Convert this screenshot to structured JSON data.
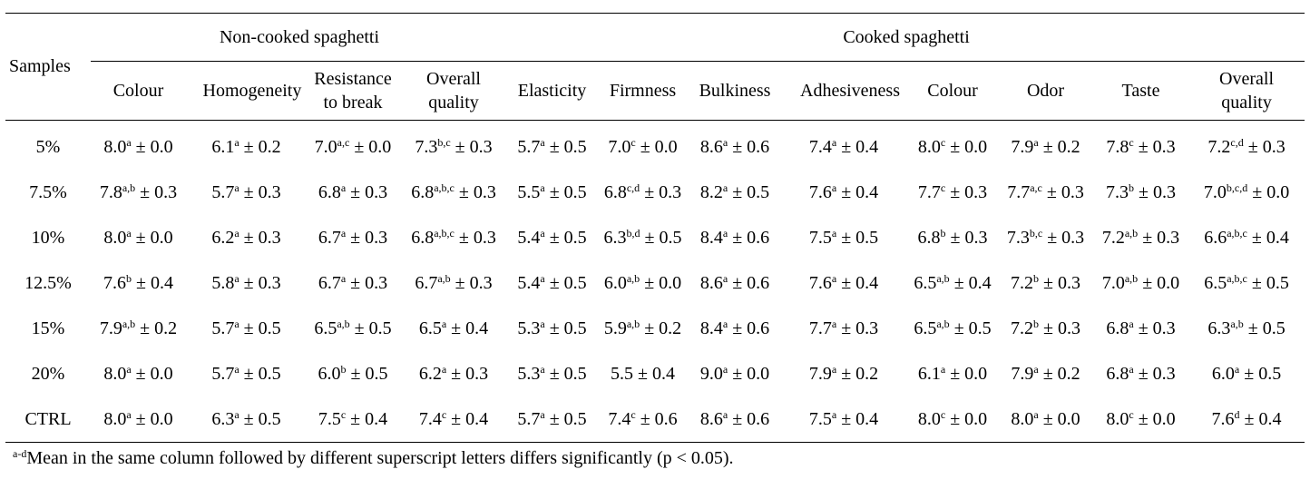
{
  "table": {
    "stub_header": "Samples",
    "groups": [
      "Non-cooked spaghetti",
      "Cooked spaghetti"
    ],
    "columns": [
      "Colour",
      "Homogeneity",
      "Resistance to break",
      "Overall quality",
      "Elasticity",
      "Firmness",
      "Bulkiness",
      "Adhesiveness",
      "Colour",
      "Odor",
      "Taste",
      "Overall quality"
    ],
    "rows": [
      {
        "sample": "5%",
        "cells": [
          [
            "8.0",
            "a",
            "± 0.0"
          ],
          [
            "6.1",
            "a",
            "± 0.2"
          ],
          [
            "7.0",
            "a,c",
            "± 0.0"
          ],
          [
            "7.3",
            "b,c",
            "± 0.3"
          ],
          [
            "5.7",
            "a",
            "± 0.5"
          ],
          [
            "7.0",
            "c",
            "± 0.0"
          ],
          [
            "8.6",
            "a",
            "± 0.6"
          ],
          [
            "7.4",
            "a",
            "± 0.4"
          ],
          [
            "8.0",
            "c",
            "± 0.0"
          ],
          [
            "7.9",
            "a",
            "± 0.2"
          ],
          [
            "7.8",
            "c",
            "± 0.3"
          ],
          [
            "7.2",
            "c,d",
            "± 0.3"
          ]
        ]
      },
      {
        "sample": "7.5%",
        "cells": [
          [
            "7.8",
            "a,b",
            "± 0.3"
          ],
          [
            "5.7",
            "a",
            "± 0.3"
          ],
          [
            "6.8",
            "a",
            "± 0.3"
          ],
          [
            "6.8",
            "a,b,c",
            "± 0.3"
          ],
          [
            "5.5",
            "a",
            "± 0.5"
          ],
          [
            "6.8",
            "c,d",
            "± 0.3"
          ],
          [
            "8.2",
            "a",
            "± 0.5"
          ],
          [
            "7.6",
            "a",
            "± 0.4"
          ],
          [
            "7.7",
            "c",
            "± 0.3"
          ],
          [
            "7.7",
            "a,c",
            "± 0.3"
          ],
          [
            "7.3",
            "b",
            "± 0.3"
          ],
          [
            "7.0",
            "b,c,d",
            "± 0.0"
          ]
        ]
      },
      {
        "sample": "10%",
        "cells": [
          [
            "8.0",
            "a",
            "± 0.0"
          ],
          [
            "6.2",
            "a",
            "± 0.3"
          ],
          [
            "6.7",
            "a",
            "± 0.3"
          ],
          [
            "6.8",
            "a,b,c",
            "± 0.3"
          ],
          [
            "5.4",
            "a",
            "± 0.5"
          ],
          [
            "6.3",
            "b,d",
            "± 0.5"
          ],
          [
            "8.4",
            "a",
            "± 0.6"
          ],
          [
            "7.5",
            "a",
            "± 0.5"
          ],
          [
            "6.8",
            "b",
            "± 0.3"
          ],
          [
            "7.3",
            "b,c",
            "± 0.3"
          ],
          [
            "7.2",
            "a,b",
            "± 0.3"
          ],
          [
            "6.6",
            "a,b,c",
            "± 0.4"
          ]
        ]
      },
      {
        "sample": "12.5%",
        "cells": [
          [
            "7.6",
            "b",
            "± 0.4"
          ],
          [
            "5.8",
            "a",
            "± 0.3"
          ],
          [
            "6.7",
            "a",
            "± 0.3"
          ],
          [
            "6.7",
            "a,b",
            "± 0.3"
          ],
          [
            "5.4",
            "a",
            "± 0.5"
          ],
          [
            "6.0",
            "a,b",
            "± 0.0"
          ],
          [
            "8.6",
            "a",
            "± 0.6"
          ],
          [
            "7.6",
            "a",
            "± 0.4"
          ],
          [
            "6.5",
            "a,b",
            "± 0.4"
          ],
          [
            "7.2",
            "b",
            "± 0.3"
          ],
          [
            "7.0",
            "a,b",
            "± 0.0"
          ],
          [
            "6.5",
            "a,b,c",
            "± 0.5"
          ]
        ]
      },
      {
        "sample": "15%",
        "cells": [
          [
            "7.9",
            "a,b",
            "± 0.2"
          ],
          [
            "5.7",
            "a",
            "± 0.5"
          ],
          [
            "6.5",
            "a,b",
            "± 0.5"
          ],
          [
            "6.5",
            "a",
            "± 0.4"
          ],
          [
            "5.3",
            "a",
            "± 0.5"
          ],
          [
            "5.9",
            "a,b",
            "± 0.2"
          ],
          [
            "8.4",
            "a",
            "± 0.6"
          ],
          [
            "7.7",
            "a",
            "± 0.3"
          ],
          [
            "6.5",
            "a,b",
            "± 0.5"
          ],
          [
            "7.2",
            "b",
            "± 0.3"
          ],
          [
            "6.8",
            "a",
            "± 0.3"
          ],
          [
            "6.3",
            "a,b",
            "± 0.5"
          ]
        ]
      },
      {
        "sample": "20%",
        "cells": [
          [
            "8.0",
            "a",
            "± 0.0"
          ],
          [
            "5.7",
            "a",
            "± 0.5"
          ],
          [
            "6.0",
            "b",
            "± 0.5"
          ],
          [
            "6.2",
            "a",
            "± 0.3"
          ],
          [
            "5.3",
            "a",
            "± 0.5"
          ],
          [
            "5.5",
            null,
            "± 0.4"
          ],
          [
            "9.0",
            "a",
            "± 0.0"
          ],
          [
            "7.9",
            "a",
            "± 0.2"
          ],
          [
            "6.1",
            "a",
            "± 0.0"
          ],
          [
            "7.9",
            "a",
            "± 0.2"
          ],
          [
            "6.8",
            "a",
            "± 0.3"
          ],
          [
            "6.0",
            "a",
            "± 0.5"
          ]
        ]
      },
      {
        "sample": "CTRL",
        "cells": [
          [
            "8.0",
            "a",
            "± 0.0"
          ],
          [
            "6.3",
            "a",
            "± 0.5"
          ],
          [
            "7.5",
            "c",
            "± 0.4"
          ],
          [
            "7.4",
            "c",
            "± 0.4"
          ],
          [
            "5.7",
            "a",
            "± 0.5"
          ],
          [
            "7.4",
            "c",
            "± 0.6"
          ],
          [
            "8.6",
            "a",
            "± 0.6"
          ],
          [
            "7.5",
            "a",
            "± 0.4"
          ],
          [
            "8.0",
            "c",
            "± 0.0"
          ],
          [
            "8.0",
            "a",
            "± 0.0"
          ],
          [
            "8.0",
            "c",
            "± 0.0"
          ],
          [
            "7.6",
            "d",
            "± 0.4"
          ]
        ]
      }
    ],
    "footnote": {
      "sup": "a-d",
      "text": "Mean in the same column followed by different superscript letters differs significantly (p < 0.05)."
    }
  }
}
